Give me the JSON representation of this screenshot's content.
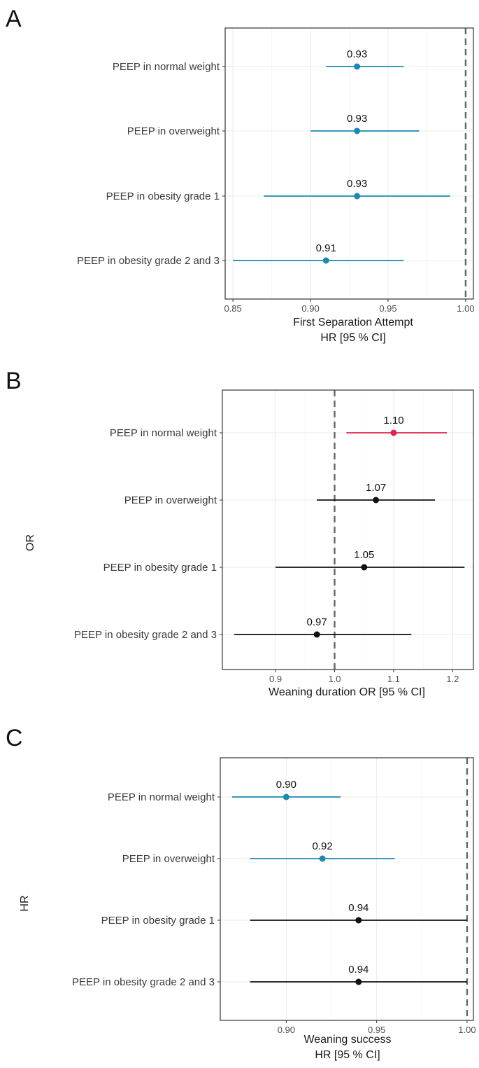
{
  "colors": {
    "teal": "#1a8ab0",
    "red": "#e0224f",
    "black": "#111111",
    "ref_line": "#666666",
    "grid": "#ebebeb"
  },
  "chart_data": [
    {
      "panel": "A",
      "type": "scatter",
      "subtype": "forest",
      "xlabel": "First Separation Attempt",
      "xlabel_line2": "HR [95 % CI]",
      "ylabel": "",
      "xlim": [
        0.845,
        1.005
      ],
      "xticks": [
        0.85,
        0.9,
        0.95,
        1.0
      ],
      "xtick_labels": [
        "0.85",
        "0.90",
        "0.95",
        "1.00"
      ],
      "reference_line": 1.0,
      "grid": true,
      "categories": [
        "PEEP in normal weight",
        "PEEP in overweight",
        "PEEP in obesity grade 1",
        "PEEP in obesity grade 2 and 3"
      ],
      "estimates": [
        0.93,
        0.93,
        0.93,
        0.91
      ],
      "lower": [
        0.91,
        0.9,
        0.87,
        0.85
      ],
      "upper": [
        0.96,
        0.97,
        0.99,
        0.96
      ],
      "labels": [
        "0.93",
        "0.93",
        "0.93",
        "0.91"
      ],
      "colors": [
        "#1a8ab0",
        "#1a8ab0",
        "#1a8ab0",
        "#1a8ab0"
      ]
    },
    {
      "panel": "B",
      "type": "scatter",
      "subtype": "forest",
      "xlabel": "Weaning duration OR [95 % CI]",
      "xlabel_line2": "",
      "ylabel": "OR",
      "xlim": [
        0.81,
        1.235
      ],
      "xticks": [
        0.9,
        1.0,
        1.1,
        1.2
      ],
      "xtick_labels": [
        "0.9",
        "1.0",
        "1.1",
        "1.2"
      ],
      "reference_line": 1.0,
      "grid": true,
      "categories": [
        "PEEP in normal weight",
        "PEEP in overweight",
        "PEEP in obesity grade 1",
        "PEEP in obesity grade 2 and 3"
      ],
      "estimates": [
        1.1,
        1.07,
        1.05,
        0.97
      ],
      "lower": [
        1.02,
        0.97,
        0.9,
        0.83
      ],
      "upper": [
        1.19,
        1.17,
        1.22,
        1.13
      ],
      "labels": [
        "1.10",
        "1.07",
        "1.05",
        "0.97"
      ],
      "colors": [
        "#e0224f",
        "#111111",
        "#111111",
        "#111111"
      ]
    },
    {
      "panel": "C",
      "type": "scatter",
      "subtype": "forest",
      "xlabel": "Weaning success",
      "xlabel_line2": "HR [95 % CI]",
      "ylabel": "HR",
      "xlim": [
        0.8635,
        1.0035
      ],
      "xticks": [
        0.9,
        0.95,
        1.0
      ],
      "xtick_labels": [
        "0.90",
        "0.95",
        "1.00"
      ],
      "reference_line": 1.0,
      "grid": true,
      "categories": [
        "PEEP in normal weight",
        "PEEP in overweight",
        "PEEP in obesity grade 1",
        "PEEP in obesity grade 2 and 3"
      ],
      "estimates": [
        0.9,
        0.92,
        0.94,
        0.94
      ],
      "lower": [
        0.87,
        0.88,
        0.88,
        0.88
      ],
      "upper": [
        0.93,
        0.96,
        1.0,
        1.0
      ],
      "labels": [
        "0.90",
        "0.92",
        "0.94",
        "0.94"
      ],
      "colors": [
        "#1a8ab0",
        "#1a8ab0",
        "#111111",
        "#111111"
      ]
    }
  ]
}
